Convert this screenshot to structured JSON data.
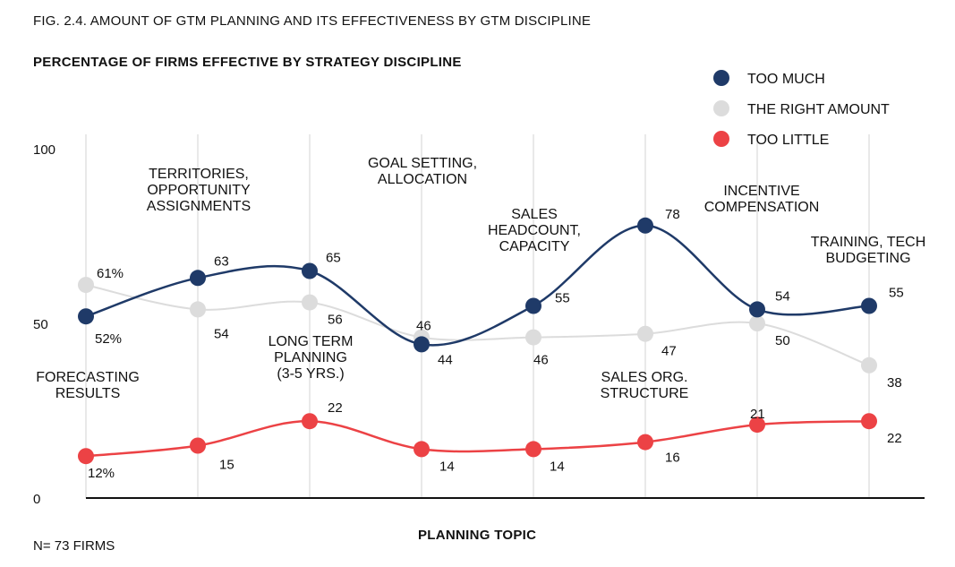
{
  "figure_title": "FIG. 2.4. AMOUNT OF GTM PLANNING AND ITS EFFECTIVENESS BY GTM DISCIPLINE",
  "note": "N= 73 FIRMS",
  "chart_data": {
    "type": "line",
    "title": "",
    "subtitle": "PERCENTAGE OF FIRMS EFFECTIVE BY STRATEGY DISCIPLINE",
    "xlabel": "PLANNING TOPIC",
    "ylabel": "",
    "ylim": [
      0,
      100
    ],
    "y_ticks": [
      0,
      50,
      100
    ],
    "grid": "vertical",
    "legend_position": "top-right",
    "categories": [
      [
        "FORECASTING",
        "RESULTS"
      ],
      [
        "TERRITORIES,",
        "OPPORTUNITY",
        "ASSIGNMENTS"
      ],
      [
        "LONG TERM",
        "PLANNING",
        "(3-5 YRS.)"
      ],
      [
        "GOAL SETTING,",
        "ALLOCATION"
      ],
      [
        "SALES",
        "HEADCOUNT,",
        "CAPACITY"
      ],
      [
        "SALES ORG.",
        "STRUCTURE"
      ],
      [
        "INCENTIVE",
        "COMPENSATION"
      ],
      [
        "TRAINING, TECH",
        "BUDGETING"
      ]
    ],
    "series": [
      {
        "name": "TOO MUCH",
        "color": "#1f3a68",
        "values": [
          52,
          63,
          65,
          44,
          55,
          78,
          54,
          55
        ],
        "labels": [
          "52%",
          "63",
          "65",
          "44",
          "55",
          "78",
          "54",
          "55"
        ]
      },
      {
        "name": "THE RIGHT AMOUNT",
        "color": "#dcdcdc",
        "values": [
          61,
          54,
          56,
          46,
          46,
          47,
          50,
          38
        ],
        "labels": [
          "61%",
          "54",
          "56",
          "46",
          "46",
          "47",
          "50",
          "38"
        ]
      },
      {
        "name": "TOO LITTLE",
        "color": "#ec4245",
        "values": [
          12,
          15,
          22,
          14,
          14,
          16,
          21,
          22
        ],
        "labels": [
          "12%",
          "15",
          "22",
          "14",
          "14",
          "16",
          "21",
          "22"
        ]
      }
    ]
  }
}
